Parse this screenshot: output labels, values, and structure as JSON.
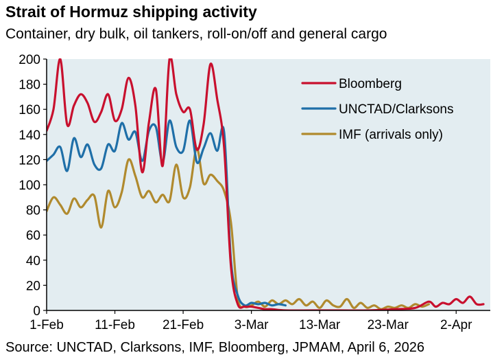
{
  "title": "Strait of Hormuz shipping activity",
  "subtitle": "Container, dry bulk, oil tankers, roll-on/off and general cargo",
  "source": "Source: UNCTAD, Clarksons, IMF, Bloomberg, JPMAM, April 6, 2026",
  "colors": {
    "plot_bg": "#e3edf1",
    "bloomberg": "#c8102e",
    "unctad": "#1f6fa8",
    "imf": "#b08a2e"
  },
  "chart_data": {
    "type": "line",
    "title": "Strait of Hormuz shipping activity",
    "subtitle": "Container, dry bulk, oil tankers, roll-on/off and general cargo",
    "x_unit": "day of 2026",
    "xlim": [
      "2026-02-01",
      "2026-04-07"
    ],
    "ylim": [
      0,
      200
    ],
    "yticks": [
      0,
      20,
      40,
      60,
      80,
      100,
      120,
      140,
      160,
      180,
      200
    ],
    "xticks": [
      {
        "date": "2026-02-01",
        "label": "1-Feb"
      },
      {
        "date": "2026-02-11",
        "label": "11-Feb"
      },
      {
        "date": "2026-02-21",
        "label": "21-Feb"
      },
      {
        "date": "2026-03-03",
        "label": "3-Mar"
      },
      {
        "date": "2026-03-13",
        "label": "13-Mar"
      },
      {
        "date": "2026-03-23",
        "label": "23-Mar"
      },
      {
        "date": "2026-04-02",
        "label": "2-Apr"
      }
    ],
    "grid": false,
    "legend_position": "top-right",
    "series": [
      {
        "name": "Bloomberg",
        "color": "#c8102e",
        "points": [
          [
            "2026-02-01",
            143
          ],
          [
            "2026-02-02",
            160
          ],
          [
            "2026-02-03",
            200
          ],
          [
            "2026-02-04",
            148
          ],
          [
            "2026-02-05",
            163
          ],
          [
            "2026-02-06",
            172
          ],
          [
            "2026-02-07",
            165
          ],
          [
            "2026-02-08",
            150
          ],
          [
            "2026-02-09",
            158
          ],
          [
            "2026-02-10",
            172
          ],
          [
            "2026-02-11",
            151
          ],
          [
            "2026-02-12",
            160
          ],
          [
            "2026-02-13",
            185
          ],
          [
            "2026-02-14",
            163
          ],
          [
            "2026-02-15",
            110
          ],
          [
            "2026-02-16",
            150
          ],
          [
            "2026-02-17",
            176
          ],
          [
            "2026-02-18",
            115
          ],
          [
            "2026-02-19",
            200
          ],
          [
            "2026-02-20",
            172
          ],
          [
            "2026-02-21",
            158
          ],
          [
            "2026-02-22",
            160
          ],
          [
            "2026-02-23",
            128
          ],
          [
            "2026-02-24",
            148
          ],
          [
            "2026-02-25",
            196
          ],
          [
            "2026-02-26",
            168
          ],
          [
            "2026-02-27",
            130
          ],
          [
            "2026-02-28",
            35
          ],
          [
            "2026-03-01",
            5
          ],
          [
            "2026-03-02",
            3
          ],
          [
            "2026-03-03",
            3
          ],
          [
            "2026-03-04",
            2
          ],
          [
            "2026-03-05",
            1
          ],
          [
            "2026-03-06",
            1
          ],
          [
            "2026-03-08",
            0
          ],
          [
            "2026-03-12",
            0
          ],
          [
            "2026-03-16",
            0
          ],
          [
            "2026-03-20",
            0
          ],
          [
            "2026-03-24",
            1
          ],
          [
            "2026-03-27",
            2
          ],
          [
            "2026-03-29",
            7
          ],
          [
            "2026-03-30",
            3
          ],
          [
            "2026-03-31",
            6
          ],
          [
            "2026-04-01",
            5
          ],
          [
            "2026-04-02",
            9
          ],
          [
            "2026-04-03",
            6
          ],
          [
            "2026-04-04",
            11
          ],
          [
            "2026-04-05",
            5
          ],
          [
            "2026-04-06",
            5
          ]
        ]
      },
      {
        "name": "UNCTAD/Clarksons",
        "color": "#1f6fa8",
        "points": [
          [
            "2026-02-01",
            119
          ],
          [
            "2026-02-02",
            124
          ],
          [
            "2026-02-03",
            130
          ],
          [
            "2026-02-04",
            111
          ],
          [
            "2026-02-05",
            137
          ],
          [
            "2026-02-06",
            122
          ],
          [
            "2026-02-07",
            132
          ],
          [
            "2026-02-08",
            116
          ],
          [
            "2026-02-09",
            113
          ],
          [
            "2026-02-10",
            132
          ],
          [
            "2026-02-11",
            127
          ],
          [
            "2026-02-12",
            149
          ],
          [
            "2026-02-13",
            136
          ],
          [
            "2026-02-14",
            142
          ],
          [
            "2026-02-15",
            119
          ],
          [
            "2026-02-16",
            143
          ],
          [
            "2026-02-17",
            146
          ],
          [
            "2026-02-18",
            118
          ],
          [
            "2026-02-19",
            151
          ],
          [
            "2026-02-20",
            130
          ],
          [
            "2026-02-21",
            127
          ],
          [
            "2026-02-22",
            151
          ],
          [
            "2026-02-23",
            118
          ],
          [
            "2026-02-24",
            129
          ],
          [
            "2026-02-25",
            141
          ],
          [
            "2026-02-26",
            127
          ],
          [
            "2026-02-27",
            142
          ],
          [
            "2026-02-28",
            40
          ],
          [
            "2026-03-01",
            12
          ],
          [
            "2026-03-02",
            4
          ],
          [
            "2026-03-03",
            6
          ],
          [
            "2026-03-04",
            5
          ],
          [
            "2026-03-05",
            6
          ],
          [
            "2026-03-06",
            4
          ],
          [
            "2026-03-07",
            5
          ],
          [
            "2026-03-08",
            4
          ]
        ]
      },
      {
        "name": "IMF (arrivals only)",
        "color": "#b08a2e",
        "points": [
          [
            "2026-02-01",
            79
          ],
          [
            "2026-02-02",
            90
          ],
          [
            "2026-02-03",
            84
          ],
          [
            "2026-02-04",
            77
          ],
          [
            "2026-02-05",
            89
          ],
          [
            "2026-02-06",
            82
          ],
          [
            "2026-02-07",
            88
          ],
          [
            "2026-02-08",
            91
          ],
          [
            "2026-02-09",
            66
          ],
          [
            "2026-02-10",
            95
          ],
          [
            "2026-02-11",
            82
          ],
          [
            "2026-02-12",
            94
          ],
          [
            "2026-02-13",
            120
          ],
          [
            "2026-02-14",
            107
          ],
          [
            "2026-02-15",
            90
          ],
          [
            "2026-02-16",
            95
          ],
          [
            "2026-02-17",
            86
          ],
          [
            "2026-02-18",
            92
          ],
          [
            "2026-02-19",
            87
          ],
          [
            "2026-02-20",
            116
          ],
          [
            "2026-02-21",
            90
          ],
          [
            "2026-02-22",
            98
          ],
          [
            "2026-02-23",
            129
          ],
          [
            "2026-02-24",
            101
          ],
          [
            "2026-02-25",
            108
          ],
          [
            "2026-02-26",
            103
          ],
          [
            "2026-02-27",
            95
          ],
          [
            "2026-02-28",
            70
          ],
          [
            "2026-03-01",
            10
          ],
          [
            "2026-03-02",
            3
          ],
          [
            "2026-03-03",
            4
          ],
          [
            "2026-03-04",
            7
          ],
          [
            "2026-03-05",
            3
          ],
          [
            "2026-03-06",
            8
          ],
          [
            "2026-03-07",
            5
          ],
          [
            "2026-03-08",
            8
          ],
          [
            "2026-03-09",
            5
          ],
          [
            "2026-03-10",
            9
          ],
          [
            "2026-03-11",
            4
          ],
          [
            "2026-03-12",
            7
          ],
          [
            "2026-03-13",
            2
          ],
          [
            "2026-03-14",
            8
          ],
          [
            "2026-03-15",
            4
          ],
          [
            "2026-03-16",
            3
          ],
          [
            "2026-03-17",
            9
          ],
          [
            "2026-03-18",
            2
          ],
          [
            "2026-03-19",
            6
          ],
          [
            "2026-03-20",
            2
          ],
          [
            "2026-03-21",
            4
          ],
          [
            "2026-03-22",
            1
          ],
          [
            "2026-03-23",
            3
          ],
          [
            "2026-03-24",
            2
          ],
          [
            "2026-03-25",
            4
          ],
          [
            "2026-03-26",
            2
          ],
          [
            "2026-03-27",
            5
          ],
          [
            "2026-03-28",
            3
          ],
          [
            "2026-03-29",
            5
          ]
        ]
      }
    ]
  }
}
